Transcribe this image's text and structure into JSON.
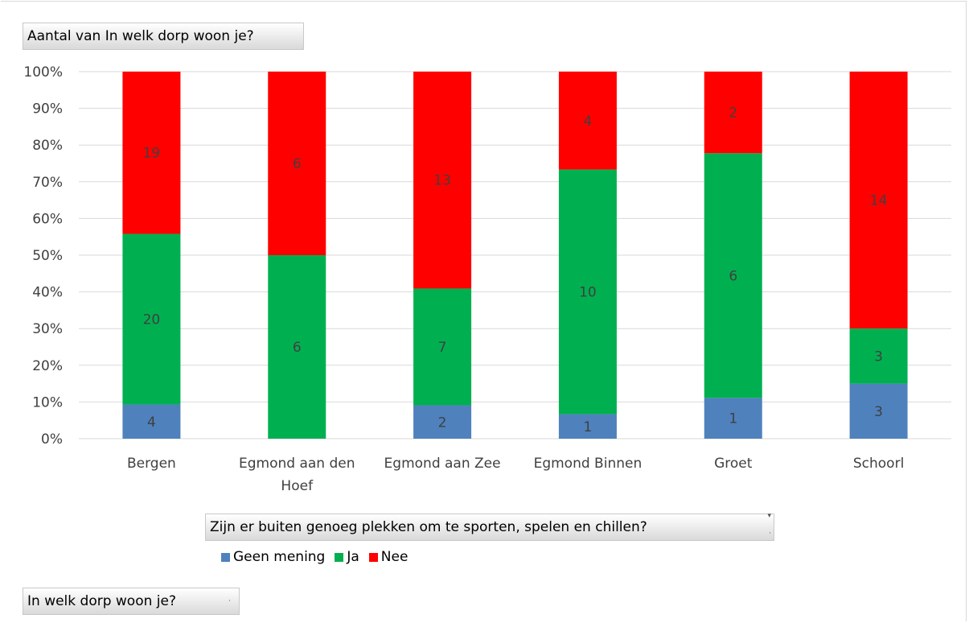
{
  "value_field_button": {
    "label": "Aantal van In welk dorp woon je?"
  },
  "series_field_button": {
    "label": "Zijn er buiten genoeg plekken om te sporten, spelen en chillen?"
  },
  "axis_field_button": {
    "label": "In welk dorp woon je?"
  },
  "colors": {
    "Geen mening": "#4f81bd",
    "Ja": "#00b050",
    "Nee": "#ff0000"
  },
  "chart_data": {
    "type": "bar",
    "stacked": "percent",
    "categories": [
      "Bergen",
      "Egmond aan den Hoef",
      "Egmond aan Zee",
      "Egmond Binnen",
      "Groet",
      "Schoorl"
    ],
    "series": [
      {
        "name": "Geen mening",
        "values": [
          4,
          0,
          2,
          1,
          1,
          3
        ]
      },
      {
        "name": "Ja",
        "values": [
          20,
          6,
          7,
          10,
          6,
          3
        ]
      },
      {
        "name": "Nee",
        "values": [
          19,
          6,
          13,
          4,
          2,
          14
        ]
      }
    ],
    "y_ticks": [
      "0%",
      "10%",
      "20%",
      "30%",
      "40%",
      "50%",
      "60%",
      "70%",
      "80%",
      "90%",
      "100%"
    ],
    "ylim": [
      0,
      100
    ],
    "grid": true,
    "legend": "bottom"
  }
}
